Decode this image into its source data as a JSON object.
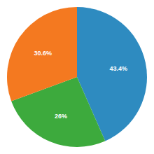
{
  "chart_data": {
    "type": "pie",
    "values": [
      43.4,
      26.0,
      30.6
    ],
    "value_labels": [
      "43.4%",
      "26%",
      "30.6%"
    ],
    "colors": [
      "#2e8bc0",
      "#3daa3d",
      "#f47920"
    ],
    "data_labels": true
  }
}
